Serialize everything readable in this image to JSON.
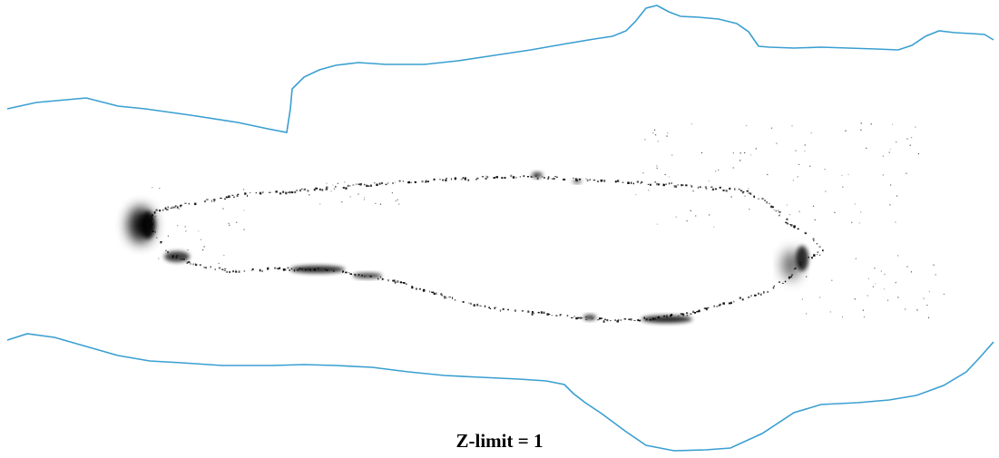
{
  "caption": "Z-limit = 1",
  "colors": {
    "background": "#ffffff",
    "boundary_line": "#3a9fd1",
    "shadow": "#000000"
  }
}
